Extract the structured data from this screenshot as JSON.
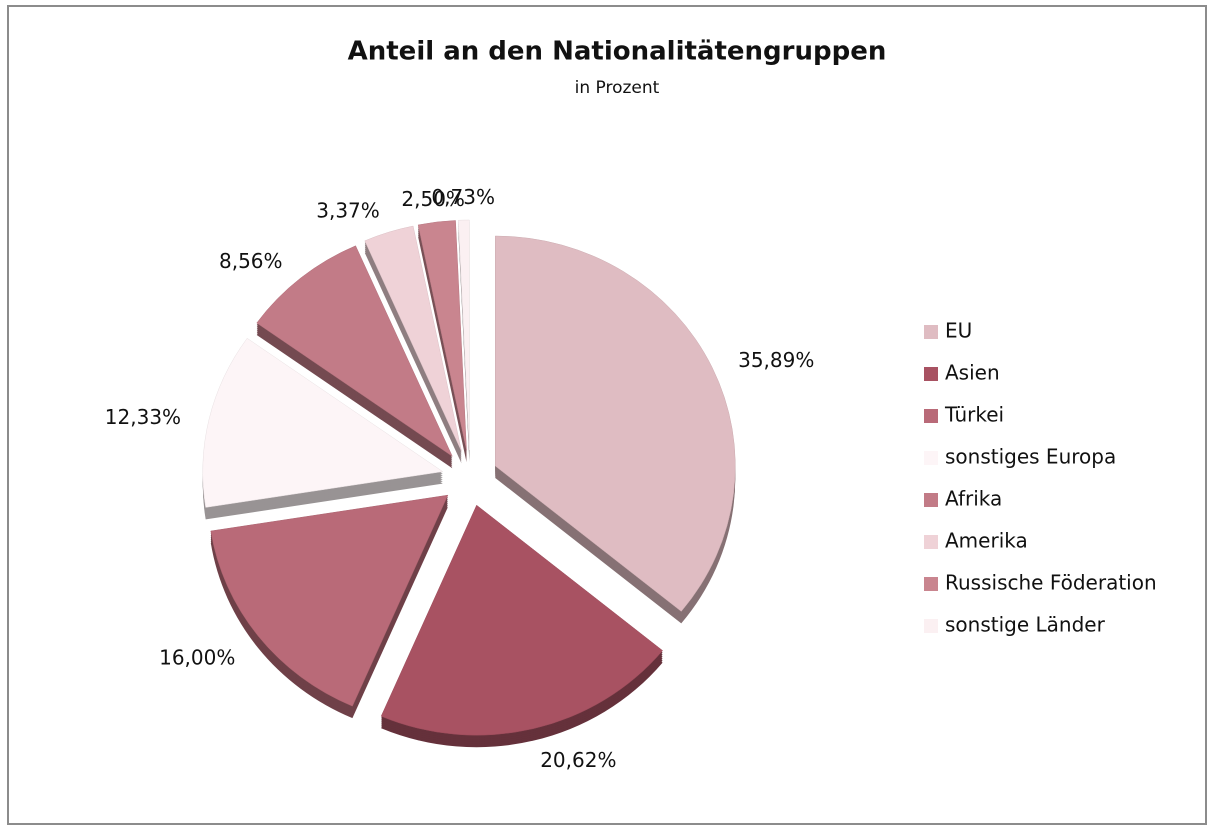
{
  "chart_data": {
    "type": "pie",
    "title": "Anteil an den Nationalitätengruppen",
    "subtitle": "in Prozent",
    "categories": [
      "EU",
      "Asien",
      "Türkei",
      "sonstiges Europa",
      "Afrika",
      "Amerika",
      "Russische Föderation",
      "sonstige Länder"
    ],
    "values": [
      35.89,
      20.62,
      16.0,
      12.33,
      8.56,
      3.37,
      2.5,
      0.73
    ],
    "value_labels": [
      "35,89%",
      "20,62%",
      "16,00%",
      "12,33%",
      "8,56%",
      "3,37%",
      "2,50%",
      "0,73%"
    ],
    "colors": [
      "#dfbcc2",
      "#a85262",
      "#b96a78",
      "#fdf5f7",
      "#c27b87",
      "#efd2d7",
      "#c9858f",
      "#fbf0f2"
    ],
    "legend": "right"
  }
}
